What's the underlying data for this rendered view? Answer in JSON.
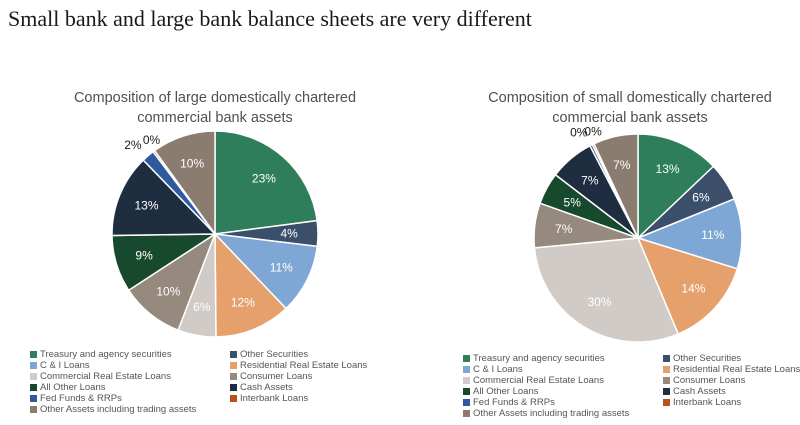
{
  "page": {
    "headline": "Small bank and large bank balance sheets are very different"
  },
  "chart_data": [
    {
      "type": "pie",
      "title_lines": [
        "Composition of large domestically chartered",
        "commercial bank assets"
      ],
      "slices": [
        {
          "label": "Treasury and agency securities",
          "value": 23,
          "display": "23%",
          "color": "#2e7d5b"
        },
        {
          "label": "Other Securities",
          "value": 4,
          "display": "4%",
          "color": "#3b4f6b"
        },
        {
          "label": "C & I Loans",
          "value": 11,
          "display": "11%",
          "color": "#7fa7d6"
        },
        {
          "label": "Residential Real Estate Loans",
          "value": 12,
          "display": "12%",
          "color": "#e6a06c"
        },
        {
          "label": "Commercial Real Estate Loans",
          "value": 6,
          "display": "6%",
          "color": "#d0cbc6"
        },
        {
          "label": "Consumer Loans",
          "value": 10,
          "display": "10%",
          "color": "#968a7f"
        },
        {
          "label": "All Other Loans",
          "value": 9,
          "display": "9%",
          "color": "#17492f"
        },
        {
          "label": "Cash Assets",
          "value": 13,
          "display": "13%",
          "color": "#1f2d40"
        },
        {
          "label": "Fed Funds & RRPs",
          "value": 2,
          "display": "2%",
          "color": "#2f5aa0"
        },
        {
          "label": "Interbank Loans",
          "value": 0.3,
          "display": "0%",
          "color": "#b3541e"
        },
        {
          "label": "Other Assets including trading assets",
          "value": 10,
          "display": "10%",
          "color": "#8a7d70"
        }
      ],
      "legend": {
        "placement": "bottom",
        "entries": [
          {
            "label": "Treasury and agency securities",
            "color": "#2e7d5b"
          },
          {
            "label": "Other Securities",
            "color": "#3b4f6b"
          },
          {
            "label": "C & I Loans",
            "color": "#7fa7d6"
          },
          {
            "label": "Residential Real Estate Loans",
            "color": "#e6a06c"
          },
          {
            "label": "Commercial Real Estate Loans",
            "color": "#d0cbc6"
          },
          {
            "label": "Consumer Loans",
            "color": "#968a7f"
          },
          {
            "label": "All Other Loans",
            "color": "#17492f"
          },
          {
            "label": "Cash Assets",
            "color": "#1f2d40"
          },
          {
            "label": "Fed Funds & RRPs",
            "color": "#2f5aa0"
          },
          {
            "label": "Interbank Loans",
            "color": "#b3541e"
          },
          {
            "label": "Other Assets including trading assets",
            "color": "#8a7d70"
          }
        ]
      }
    },
    {
      "type": "pie",
      "title_lines": [
        "Composition of small domestically chartered",
        "commercial bank assets"
      ],
      "slices": [
        {
          "label": "Treasury and agency securities",
          "value": 13,
          "display": "13%",
          "color": "#2e7d5b"
        },
        {
          "label": "Other Securities",
          "value": 6,
          "display": "6%",
          "color": "#3b4f6b"
        },
        {
          "label": "C & I Loans",
          "value": 11,
          "display": "11%",
          "color": "#7fa7d6"
        },
        {
          "label": "Residential Real Estate Loans",
          "value": 14,
          "display": "14%",
          "color": "#e6a06c"
        },
        {
          "label": "Commercial Real Estate Loans",
          "value": 30,
          "display": "30%",
          "color": "#d0cbc6"
        },
        {
          "label": "Consumer Loans",
          "value": 7,
          "display": "7%",
          "color": "#968a7f"
        },
        {
          "label": "All Other Loans",
          "value": 5,
          "display": "5%",
          "color": "#17492f"
        },
        {
          "label": "Cash Assets",
          "value": 7,
          "display": "7%",
          "color": "#1f2d40"
        },
        {
          "label": "Fed Funds & RRPs",
          "value": 0.4,
          "display": "0%",
          "color": "#2f5aa0"
        },
        {
          "label": "Interbank Loans",
          "value": 0.3,
          "display": "0%",
          "color": "#b3541e"
        },
        {
          "label": "Other Assets including trading assets",
          "value": 7,
          "display": "7%",
          "color": "#8a7d70"
        }
      ],
      "legend": {
        "placement": "bottom",
        "entries": [
          {
            "label": "Treasury and agency securities",
            "color": "#2e7d5b"
          },
          {
            "label": "Other Securities",
            "color": "#3b4f6b"
          },
          {
            "label": "C & I Loans",
            "color": "#7fa7d6"
          },
          {
            "label": "Residential Real Estate Loans",
            "color": "#e6a06c"
          },
          {
            "label": "Commercial Real Estate Loans",
            "color": "#d0cbc6"
          },
          {
            "label": "Consumer Loans",
            "color": "#968a7f"
          },
          {
            "label": "All Other Loans",
            "color": "#17492f"
          },
          {
            "label": "Cash Assets",
            "color": "#1f2d40"
          },
          {
            "label": "Fed Funds & RRPs",
            "color": "#2f5aa0"
          },
          {
            "label": "Interbank Loans",
            "color": "#b3541e"
          },
          {
            "label": "Other Assets including trading assets",
            "color": "#8a7d70"
          }
        ]
      }
    }
  ]
}
